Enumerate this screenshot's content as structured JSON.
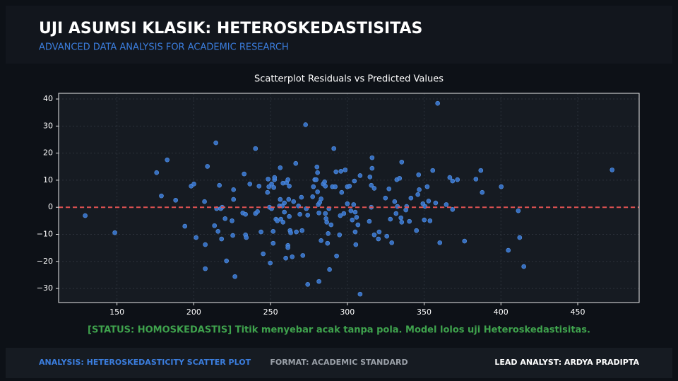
{
  "header": {
    "title": "UJI ASUMSI KLASIK: HETEROSKEDASTISITAS",
    "subtitle": "ADVANCED DATA ANALYSIS FOR ACADEMIC RESEARCH"
  },
  "chart_data": {
    "type": "scatter",
    "title": "Scatterplot Residuals vs Predicted Values",
    "x": [
      129.3,
      148.6,
      175.8,
      178.9,
      182.7,
      188.2,
      194.2,
      198.3,
      200.1,
      201.5,
      207.0,
      207.5,
      207.5,
      208.9,
      213.5,
      214.9,
      214.4,
      215.8,
      216.7,
      217.6,
      218.1,
      218.5,
      220.4,
      221.3,
      224.9,
      225.9,
      225.9,
      225.4,
      226.8,
      231.9,
      232.8,
      233.7,
      233.7,
      234.2,
      236.5,
      240.2,
      240.2,
      241.5,
      242.5,
      243.8,
      245.2,
      248.0,
      248.4,
      248.9,
      249.3,
      249.8,
      250.7,
      250.7,
      251.7,
      251.7,
      252.1,
      252.6,
      252.6,
      253.5,
      254.4,
      255.8,
      256.3,
      256.3,
      256.7,
      257.6,
      258.1,
      258.1,
      259.0,
      259.0,
      260.4,
      259.9,
      261.3,
      261.3,
      261.3,
      261.8,
      262.2,
      262.2,
      262.7,
      263.1,
      264.1,
      265.0,
      266.4,
      266.8,
      268.2,
      269.1,
      270.1,
      270.5,
      271.0,
      272.8,
      273.3,
      274.2,
      274.2,
      277.4,
      277.9,
      278.8,
      280.2,
      280.6,
      279.7,
      280.6,
      281.1,
      282.0,
      281.5,
      281.5,
      282.9,
      282.9,
      284.3,
      285.2,
      285.7,
      285.7,
      286.1,
      286.6,
      287.1,
      287.5,
      288.0,
      288.4,
      289.4,
      290.3,
      291.2,
      292.1,
      292.6,
      293.0,
      294.9,
      295.4,
      295.8,
      296.3,
      297.7,
      298.6,
      300.0,
      300.0,
      301.4,
      302.3,
      303.2,
      304.1,
      304.6,
      305.1,
      305.1,
      305.5,
      306.0,
      306.9,
      308.3,
      308.3,
      314.3,
      314.7,
      315.6,
      315.6,
      316.1,
      316.1,
      317.5,
      317.5,
      320.7,
      320.2,
      324.8,
      325.7,
      327.1,
      328.0,
      328.9,
      330.8,
      331.7,
      332.2,
      332.6,
      334.0,
      334.9,
      335.4,
      335.4,
      338.1,
      338.6,
      340.4,
      341.4,
      345.0,
      345.9,
      346.8,
      346.4,
      349.2,
      350.1,
      350.6,
      352.0,
      352.9,
      353.8,
      355.6,
      357.5,
      358.8,
      360.2,
      364.4,
      366.7,
      368.5,
      368.5,
      371.7,
      376.3,
      383.7,
      386.9,
      387.8,
      400.2,
      404.8,
      411.3,
      412.2,
      414.9,
      472.4
    ],
    "values": [
      -3.1,
      -9.4,
      12.8,
      4.2,
      17.5,
      2.6,
      -7.0,
      7.8,
      8.6,
      -11.2,
      2.1,
      -13.8,
      -22.7,
      15.1,
      -6.8,
      -0.5,
      23.8,
      -8.9,
      8.1,
      -0.5,
      -11.7,
      0,
      -4.2,
      -19.8,
      -5.0,
      2.9,
      6.5,
      -10.4,
      -25.6,
      -2.1,
      12.3,
      -2.6,
      -10.2,
      -11.2,
      8.6,
      21.7,
      -2.3,
      -1.6,
      7.8,
      -9.1,
      -17.2,
      5.5,
      10.4,
      7.6,
      0,
      -20.6,
      8.6,
      -0.5,
      -8.9,
      -13.3,
      7.3,
      10.2,
      11.0,
      -4.4,
      -5.0,
      0.5,
      14.6,
      2.9,
      -4.4,
      0.5,
      8.9,
      -5.5,
      -1.8,
      1.6,
      9.1,
      -18.8,
      10.2,
      -14.1,
      -14.9,
      2.9,
      7.8,
      -3.4,
      -8.6,
      -9.4,
      -18.3,
      2.1,
      16.2,
      -9.1,
      0.5,
      -2.6,
      3.7,
      -8.6,
      -17.8,
      30.5,
      -0.5,
      -2.9,
      -28.5,
      3.9,
      7.6,
      10.2,
      14.9,
      12.8,
      10.2,
      5.7,
      1.0,
      1.8,
      -2.1,
      -27.4,
      -12.3,
      3.1,
      8.6,
      9.4,
      7.8,
      -2.3,
      -4.2,
      -5.5,
      -13.3,
      -9.7,
      -0.5,
      -23.0,
      -6.5,
      7.6,
      21.7,
      7.6,
      13.1,
      -18.0,
      -10.2,
      -3.1,
      13.3,
      5.5,
      -2.3,
      13.8,
      7.6,
      1.3,
      7.8,
      -1.3,
      -4.7,
      1.0,
      9.7,
      -1.8,
      -9.1,
      -13.8,
      -3.7,
      -6.5,
      11.7,
      -32.1,
      -5.2,
      11.2,
      0,
      8.1,
      14.4,
      18.3,
      7.0,
      -10.2,
      -9.1,
      -11.7,
      3.4,
      -10.7,
      6.8,
      -4.4,
      -13.1,
      2.1,
      -2.3,
      10.2,
      0.3,
      10.7,
      -3.9,
      -5.5,
      16.7,
      -1.0,
      0.3,
      -5.2,
      3.4,
      -8.6,
      4.7,
      6.5,
      12.0,
      1.3,
      -4.7,
      0.3,
      7.6,
      2.3,
      -5.0,
      13.6,
      1.6,
      38.4,
      -13.1,
      1.0,
      11.0,
      9.7,
      -0.8,
      10.2,
      -12.5,
      10.4,
      13.6,
      5.5,
      7.6,
      -15.9,
      -1.3,
      -11.2,
      -21.9,
      13.8
    ],
    "color": "#3a78d0",
    "xlim": [
      112,
      490
    ],
    "ylim": [
      -35.2,
      42.1
    ],
    "xticks": [
      150,
      200,
      250,
      300,
      350,
      400,
      450
    ],
    "yticks": [
      {
        "value": -30,
        "label": "−30"
      },
      {
        "value": -20,
        "label": "−20"
      },
      {
        "value": -10,
        "label": "−10"
      },
      0,
      10,
      20,
      30,
      40
    ],
    "grid": true,
    "reference_line": 0,
    "reference_color": "#e05252"
  },
  "status": "[STATUS: HOMOSKEDASTIS] Titik menyebar acak tanpa pola. Model lolos uji Heteroskedastisitas.",
  "footer": {
    "left": "ANALYSIS: HETEROSKEDASTICITY SCATTER PLOT",
    "center": "FORMAT: ACADEMIC STANDARD",
    "right": "LEAD ANALYST: ARDYA PRADIPTA"
  }
}
